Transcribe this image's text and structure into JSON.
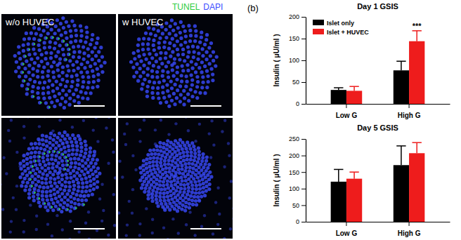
{
  "images": {
    "stain_legend": [
      {
        "text": "TUNEL",
        "color": "#2ecc40"
      },
      {
        "text": "DAPI",
        "color": "#3a4bff"
      }
    ],
    "labels": [
      "w/o HUVEC",
      "w HUVEC"
    ]
  },
  "panel_label": "(b)",
  "chart_data": [
    {
      "type": "bar",
      "title": "Day 1 GSIS",
      "y_label": "Insulin ( μU/ml )",
      "categories": [
        "Low G",
        "High G"
      ],
      "series": [
        {
          "name": "Islet only",
          "color": "#000000",
          "values": [
            32,
            77
          ],
          "errors": [
            5,
            21
          ]
        },
        {
          "name": "Islet + HUVEC",
          "color": "#ee1c1c",
          "values": [
            30,
            144
          ],
          "errors": [
            10,
            24
          ]
        }
      ],
      "ylim": [
        0,
        200
      ],
      "yticks": [
        0,
        50,
        100,
        150,
        200
      ],
      "legend": "top-left",
      "annotations": [
        {
          "text": "***",
          "category": 1,
          "series": 1
        }
      ]
    },
    {
      "type": "bar",
      "title": "Day 5 GSIS",
      "y_label": "Insulin ( μU/ml )",
      "categories": [
        "Low G",
        "High G"
      ],
      "series": [
        {
          "name": "Islet only",
          "color": "#000000",
          "values": [
            121,
            171
          ],
          "errors": [
            37,
            58
          ]
        },
        {
          "name": "Islet + HUVEC",
          "color": "#ee1c1c",
          "values": [
            130,
            207
          ],
          "errors": [
            20,
            32
          ]
        }
      ],
      "ylim": [
        0,
        250
      ],
      "yticks": [
        0,
        50,
        100,
        150,
        200,
        250
      ]
    }
  ]
}
